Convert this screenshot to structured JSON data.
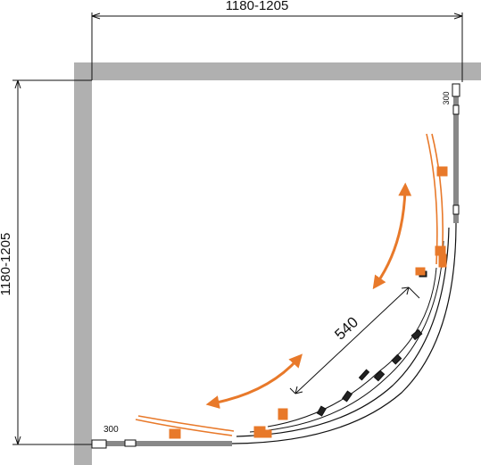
{
  "dimensions": {
    "width_label": "1180-1205",
    "height_label": "1180-1205",
    "opening_label": "540",
    "top_offset_label": "300",
    "left_offset_label": "300"
  },
  "colors": {
    "wall": "#b0b0b0",
    "line": "#111111",
    "accent": "#e8792a",
    "dark_part": "#222222"
  },
  "icons": {
    "rotation_arrow_upper": "double-curved-arrow-icon",
    "rotation_arrow_lower": "double-curved-arrow-icon"
  }
}
